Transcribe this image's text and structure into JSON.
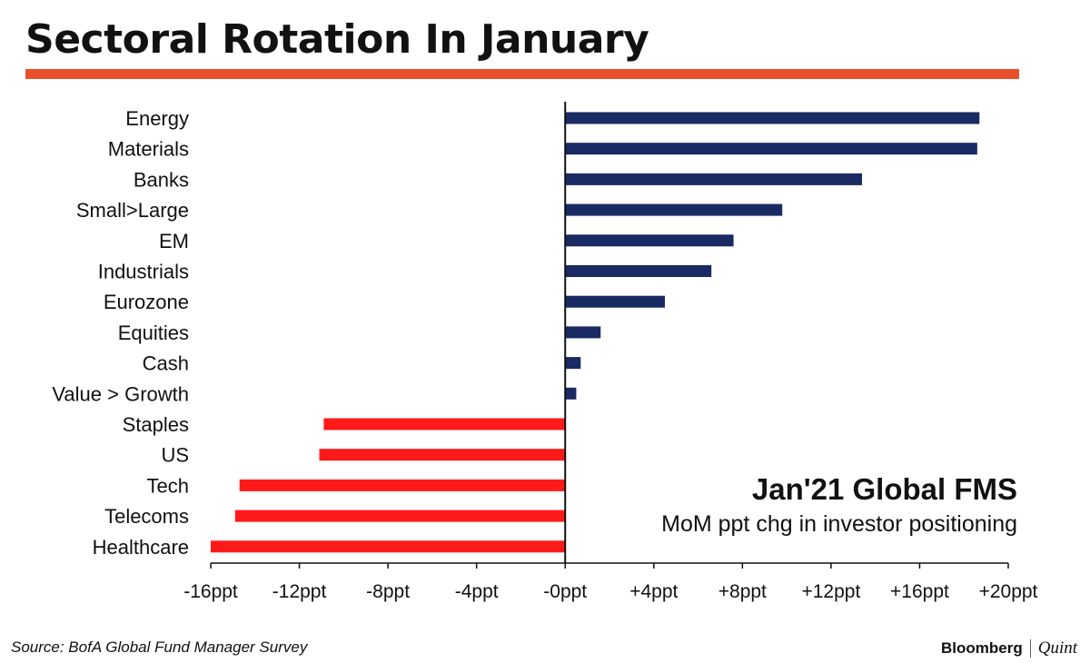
{
  "header": {
    "title": "Sectoral Rotation In January"
  },
  "colors": {
    "positive": "#1a2a63",
    "negative": "#ff1a1a",
    "rule": "#e8502c",
    "axis": "#111111"
  },
  "annotation": {
    "title": "Jan'21 Global FMS",
    "subtitle": "MoM ppt chg in investor positioning"
  },
  "footer": {
    "source": "Source: BofA Global Fund Manager Survey",
    "brand_primary": "Bloomberg",
    "brand_secondary": "Quint"
  },
  "chart_data": {
    "type": "bar",
    "orientation": "horizontal",
    "title": "Sectoral Rotation In January",
    "categories": [
      "Energy",
      "Materials",
      "Banks",
      "Small>Large",
      "EM",
      "Industrials",
      "Eurozone",
      "Equities",
      "Cash",
      "Value > Growth",
      "Staples",
      "US",
      "Tech",
      "Telecoms",
      "Healthcare"
    ],
    "values": [
      18.7,
      18.6,
      13.4,
      9.8,
      7.6,
      6.6,
      4.5,
      1.6,
      0.7,
      0.5,
      -10.9,
      -11.1,
      -14.7,
      -14.9,
      -16.0
    ],
    "xlim": [
      -16,
      20
    ],
    "ticks": [
      {
        "value": -16,
        "label": "-16ppt"
      },
      {
        "value": -12,
        "label": "-12ppt"
      },
      {
        "value": -8,
        "label": "-8ppt"
      },
      {
        "value": -4,
        "label": "-4ppt"
      },
      {
        "value": 0,
        "label": "-0ppt"
      },
      {
        "value": 4,
        "label": "+4ppt"
      },
      {
        "value": 8,
        "label": "+8ppt"
      },
      {
        "value": 12,
        "label": "+12ppt"
      },
      {
        "value": 16,
        "label": "+16ppt"
      },
      {
        "value": 20,
        "label": "+20ppt"
      }
    ],
    "grid": false,
    "legend": "none"
  }
}
